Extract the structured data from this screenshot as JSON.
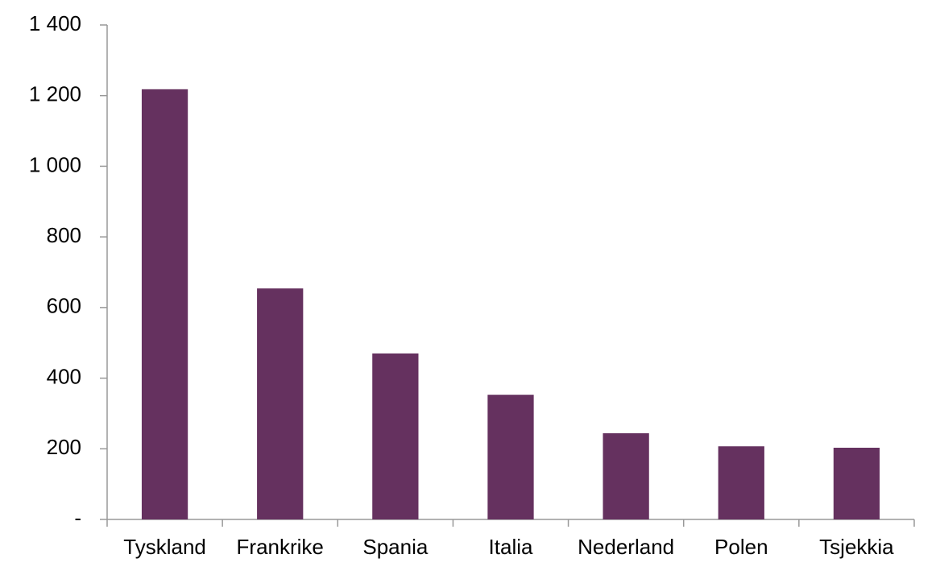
{
  "chart_data": {
    "type": "bar",
    "categories": [
      "Tyskland",
      "Frankrike",
      "Spania",
      "Italia",
      "Nederland",
      "Polen",
      "Tsjekkia"
    ],
    "values": [
      1218,
      654,
      470,
      353,
      244,
      207,
      203
    ],
    "color": "#65315f",
    "ylim": [
      0,
      1400
    ],
    "yticks": [
      {
        "value": 0,
        "label": "-"
      },
      200,
      400,
      600,
      800,
      {
        "value": 1000,
        "label": "1 000"
      },
      {
        "value": 1200,
        "label": "1 200"
      },
      {
        "value": 1400,
        "label": "1 400"
      }
    ],
    "grid": false
  }
}
